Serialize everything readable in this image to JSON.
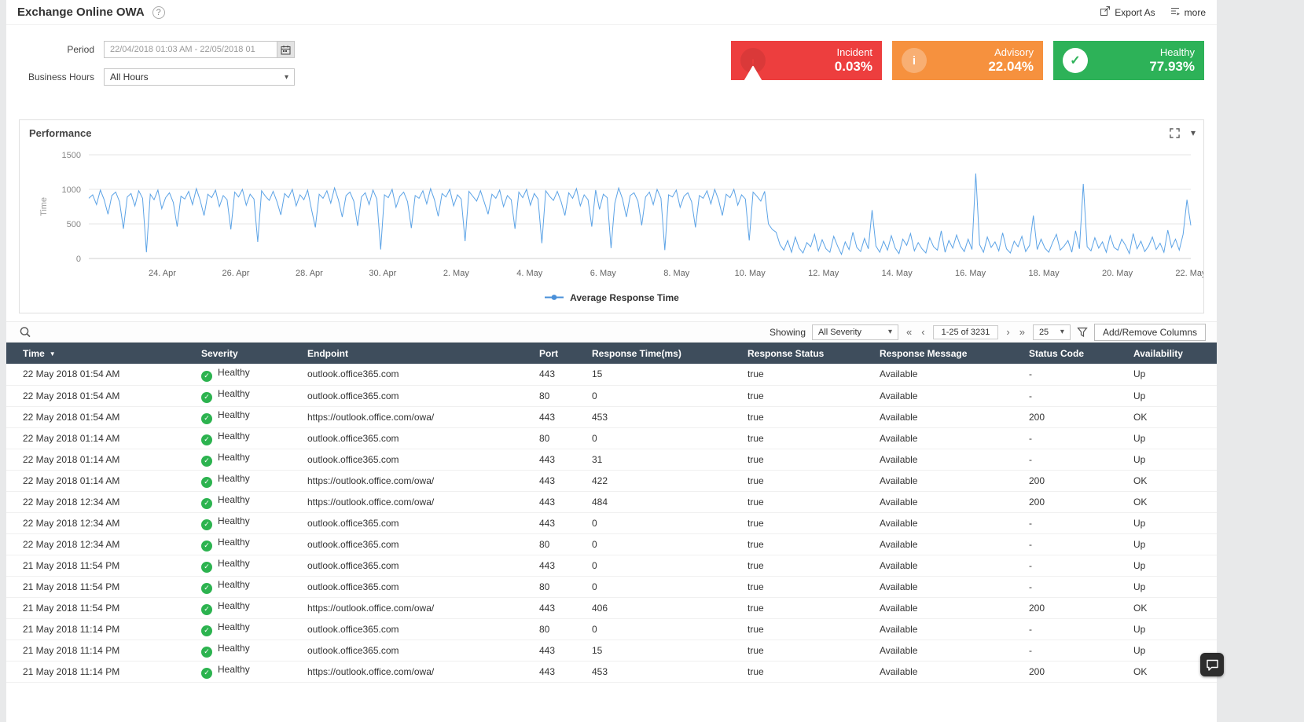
{
  "icons": {
    "help": "?",
    "caret_down": "▾",
    "sort_desc": "▼",
    "first_page": "«",
    "prev_page": "‹",
    "next_page": "›",
    "last_page": "»"
  },
  "header": {
    "title": "Exchange Online OWA",
    "export_label": "Export As",
    "more_label": "more"
  },
  "filters": {
    "period_label": "Period",
    "period_value": "22/04/2018 01:03 AM - 22/05/2018 01",
    "business_hours_label": "Business Hours",
    "business_hours_value": "All Hours"
  },
  "status_cards": {
    "incident": {
      "label": "Incident",
      "value": "0.03%",
      "color": "#ed3e3e"
    },
    "advisory": {
      "label": "Advisory",
      "value": "22.04%",
      "color": "#f6913e"
    },
    "healthy": {
      "label": "Healthy",
      "value": "77.93%",
      "color": "#2db258"
    }
  },
  "chart_panel": {
    "title": "Performance"
  },
  "chart_data": {
    "type": "line",
    "title": "Performance",
    "ylabel": "Time",
    "ylim": [
      0,
      1500
    ],
    "yticks": [
      0,
      500,
      1000,
      1500
    ],
    "grid": true,
    "legend_position": "bottom",
    "x_ticks": [
      "24. Apr",
      "26. Apr",
      "28. Apr",
      "30. Apr",
      "2. May",
      "4. May",
      "6. May",
      "8. May",
      "10. May",
      "12. May",
      "14. May",
      "16. May",
      "18. May",
      "20. May",
      "22. May"
    ],
    "x_range": [
      "22 Apr 2018 01:00",
      "22 May 2018 01:00"
    ],
    "series": [
      {
        "name": "Average Response Time",
        "color": "#5ca3e6",
        "values": [
          870,
          920,
          780,
          990,
          850,
          640,
          910,
          960,
          820,
          430,
          890,
          940,
          760,
          980,
          870,
          90,
          930,
          850,
          990,
          720,
          880,
          950,
          810,
          460,
          900,
          860,
          970,
          780,
          1010,
          840,
          620,
          930,
          880,
          990,
          750,
          910,
          850,
          420,
          960,
          890,
          1000,
          770,
          930,
          860,
          240,
          980,
          900,
          840,
          970,
          820,
          630,
          940,
          880,
          1000,
          760,
          920,
          850,
          990,
          710,
          450,
          930,
          870,
          980,
          800,
          1020,
          850,
          600,
          910,
          960,
          830,
          470,
          890,
          950,
          780,
          990,
          860,
          130,
          920,
          880,
          1000,
          740,
          900,
          960,
          820,
          440,
          910,
          870,
          980,
          790,
          1010,
          850,
          610,
          940,
          890,
          1000,
          760,
          920,
          860,
          250,
          970,
          900,
          830,
          980,
          810,
          640,
          930,
          870,
          990,
          750,
          910,
          850,
          430,
          960,
          880,
          1000,
          770,
          940,
          860,
          220,
          980,
          900,
          840,
          970,
          820,
          620,
          950,
          870,
          1010,
          760,
          920,
          850,
          460,
          990,
          710,
          930,
          880,
          150,
          800,
          1020,
          860,
          600,
          910,
          950,
          830,
          480,
          890,
          960,
          780,
          1000,
          870,
          120,
          920,
          890,
          990,
          740,
          900,
          950,
          820,
          450,
          910,
          870,
          980,
          790,
          1000,
          850,
          620,
          930,
          880,
          1000,
          770,
          920,
          860,
          260,
          960,
          900,
          830,
          970,
          500,
          420,
          380,
          200,
          120,
          260,
          90,
          310,
          150,
          80,
          230,
          170,
          350,
          110,
          270,
          140,
          90,
          320,
          180,
          60,
          240,
          130,
          380,
          160,
          100,
          290,
          140,
          700,
          180,
          90,
          250,
          120,
          330,
          150,
          70,
          280,
          190,
          360,
          110,
          230,
          140,
          80,
          300,
          170,
          120,
          400,
          90,
          260,
          150,
          340,
          180,
          100,
          280,
          130,
          1230,
          200,
          90,
          310,
          160,
          240,
          110,
          370,
          140,
          80,
          250,
          170,
          320,
          100,
          190,
          620,
          130,
          280,
          150,
          90,
          230,
          350,
          120,
          180,
          260,
          90,
          400,
          140,
          1080,
          170,
          110,
          300,
          150,
          240,
          90,
          330,
          160,
          120,
          280,
          190,
          70,
          360,
          140,
          250,
          100,
          180,
          310,
          130,
          220,
          90,
          410,
          160,
          280,
          120,
          350,
          850,
          480
        ]
      }
    ]
  },
  "table_toolbar": {
    "showing_label": "Showing",
    "severity_filter": "All Severity",
    "page_info": "1-25 of 3231",
    "page_size": "25",
    "add_remove_columns": "Add/Remove Columns"
  },
  "table": {
    "columns": [
      "Time",
      "Severity",
      "Endpoint",
      "Port",
      "Response Time(ms)",
      "Response Status",
      "Response Message",
      "Status Code",
      "Availability"
    ],
    "rows": [
      {
        "time": "22 May 2018 01:54 AM",
        "severity": "Healthy",
        "endpoint": "outlook.office365.com",
        "port": "443",
        "response_time": "15",
        "response_status": "true",
        "response_message": "Available",
        "status_code": "-",
        "availability": "Up"
      },
      {
        "time": "22 May 2018 01:54 AM",
        "severity": "Healthy",
        "endpoint": "outlook.office365.com",
        "port": "80",
        "response_time": "0",
        "response_status": "true",
        "response_message": "Available",
        "status_code": "-",
        "availability": "Up"
      },
      {
        "time": "22 May 2018 01:54 AM",
        "severity": "Healthy",
        "endpoint": "https://outlook.office.com/owa/",
        "port": "443",
        "response_time": "453",
        "response_status": "true",
        "response_message": "Available",
        "status_code": "200",
        "availability": "OK"
      },
      {
        "time": "22 May 2018 01:14 AM",
        "severity": "Healthy",
        "endpoint": "outlook.office365.com",
        "port": "80",
        "response_time": "0",
        "response_status": "true",
        "response_message": "Available",
        "status_code": "-",
        "availability": "Up"
      },
      {
        "time": "22 May 2018 01:14 AM",
        "severity": "Healthy",
        "endpoint": "outlook.office365.com",
        "port": "443",
        "response_time": "31",
        "response_status": "true",
        "response_message": "Available",
        "status_code": "-",
        "availability": "Up"
      },
      {
        "time": "22 May 2018 01:14 AM",
        "severity": "Healthy",
        "endpoint": "https://outlook.office.com/owa/",
        "port": "443",
        "response_time": "422",
        "response_status": "true",
        "response_message": "Available",
        "status_code": "200",
        "availability": "OK"
      },
      {
        "time": "22 May 2018 12:34 AM",
        "severity": "Healthy",
        "endpoint": "https://outlook.office.com/owa/",
        "port": "443",
        "response_time": "484",
        "response_status": "true",
        "response_message": "Available",
        "status_code": "200",
        "availability": "OK"
      },
      {
        "time": "22 May 2018 12:34 AM",
        "severity": "Healthy",
        "endpoint": "outlook.office365.com",
        "port": "443",
        "response_time": "0",
        "response_status": "true",
        "response_message": "Available",
        "status_code": "-",
        "availability": "Up"
      },
      {
        "time": "22 May 2018 12:34 AM",
        "severity": "Healthy",
        "endpoint": "outlook.office365.com",
        "port": "80",
        "response_time": "0",
        "response_status": "true",
        "response_message": "Available",
        "status_code": "-",
        "availability": "Up"
      },
      {
        "time": "21 May 2018 11:54 PM",
        "severity": "Healthy",
        "endpoint": "outlook.office365.com",
        "port": "443",
        "response_time": "0",
        "response_status": "true",
        "response_message": "Available",
        "status_code": "-",
        "availability": "Up"
      },
      {
        "time": "21 May 2018 11:54 PM",
        "severity": "Healthy",
        "endpoint": "outlook.office365.com",
        "port": "80",
        "response_time": "0",
        "response_status": "true",
        "response_message": "Available",
        "status_code": "-",
        "availability": "Up"
      },
      {
        "time": "21 May 2018 11:54 PM",
        "severity": "Healthy",
        "endpoint": "https://outlook.office.com/owa/",
        "port": "443",
        "response_time": "406",
        "response_status": "true",
        "response_message": "Available",
        "status_code": "200",
        "availability": "OK"
      },
      {
        "time": "21 May 2018 11:14 PM",
        "severity": "Healthy",
        "endpoint": "outlook.office365.com",
        "port": "80",
        "response_time": "0",
        "response_status": "true",
        "response_message": "Available",
        "status_code": "-",
        "availability": "Up"
      },
      {
        "time": "21 May 2018 11:14 PM",
        "severity": "Healthy",
        "endpoint": "outlook.office365.com",
        "port": "443",
        "response_time": "15",
        "response_status": "true",
        "response_message": "Available",
        "status_code": "-",
        "availability": "Up"
      },
      {
        "time": "21 May 2018 11:14 PM",
        "severity": "Healthy",
        "endpoint": "https://outlook.office.com/owa/",
        "port": "443",
        "response_time": "453",
        "response_status": "true",
        "response_message": "Available",
        "status_code": "200",
        "availability": "OK"
      }
    ]
  }
}
